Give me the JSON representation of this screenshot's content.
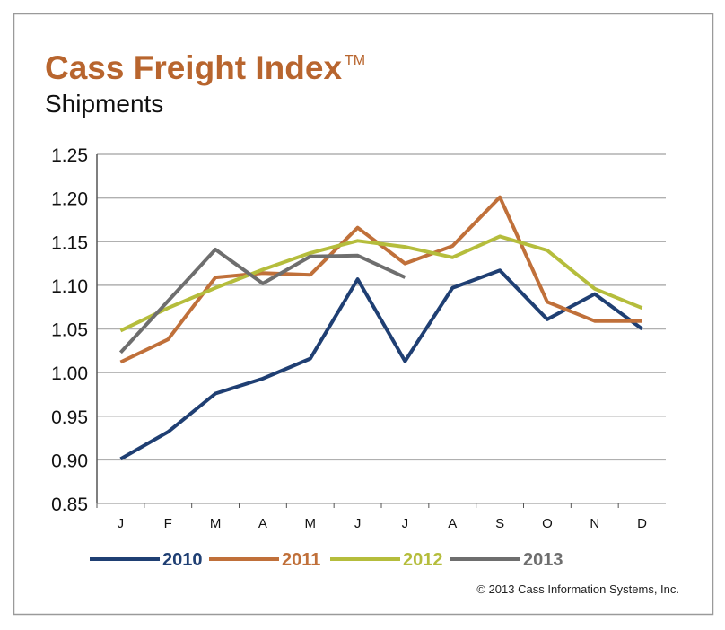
{
  "chart_data": {
    "type": "line",
    "title": "Cass Freight Index",
    "title_mark": "TM",
    "subtitle": "Shipments",
    "credit": "© 2013 Cass Information Systems, Inc.",
    "categories": [
      "J",
      "F",
      "M",
      "A",
      "M",
      "J",
      "J",
      "A",
      "S",
      "O",
      "N",
      "D"
    ],
    "series": [
      {
        "name": "2010",
        "color": "#1f3f73",
        "values": [
          0.901,
          0.932,
          0.976,
          0.993,
          1.016,
          1.107,
          1.013,
          1.097,
          1.117,
          1.061,
          1.09,
          1.05
        ]
      },
      {
        "name": "2011",
        "color": "#c0703a",
        "values": [
          1.012,
          1.038,
          1.109,
          1.114,
          1.112,
          1.166,
          1.125,
          1.145,
          1.201,
          1.081,
          1.059,
          1.059
        ]
      },
      {
        "name": "2012",
        "color": "#b5bd3c",
        "values": [
          1.048,
          1.074,
          1.097,
          1.118,
          1.137,
          1.151,
          1.144,
          1.132,
          1.156,
          1.14,
          1.096,
          1.074
        ]
      },
      {
        "name": "2013",
        "color": "#6e6e6e",
        "values": [
          1.023,
          1.082,
          1.141,
          1.102,
          1.133,
          1.134,
          1.109,
          null,
          null,
          null,
          null,
          null
        ]
      }
    ],
    "ylim": [
      0.85,
      1.25
    ],
    "yticks": [
      0.85,
      {
        "value": 0.9,
        "label": "0.90"
      },
      0.95,
      {
        "value": 1.0,
        "label": "1.00"
      },
      1.05,
      {
        "value": 1.1,
        "label": "1.10"
      },
      1.15,
      {
        "value": 1.2,
        "label": "1.20"
      },
      1.25
    ],
    "grid": true
  }
}
